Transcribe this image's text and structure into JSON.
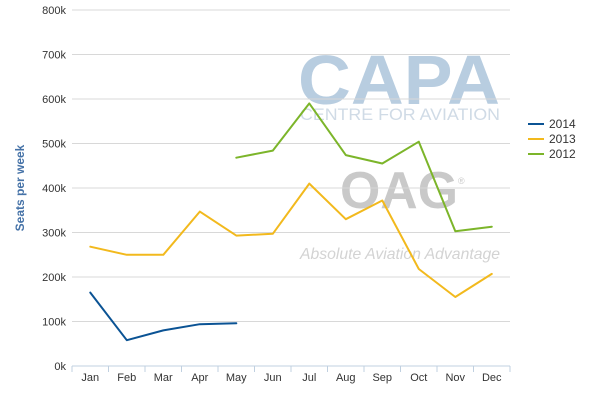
{
  "watermarks": {
    "capa_logo": "CAPA",
    "capa_subtitle": "CENTRE FOR AVIATION",
    "oag_logo": "OAG",
    "oag_registered": "®",
    "oag_tagline": "Absolute Aviation Advantage"
  },
  "chart_data": {
    "type": "line",
    "title": "",
    "xlabel": "",
    "ylabel": "Seats per week",
    "ylim": [
      0,
      800000
    ],
    "yticks": [
      0,
      100000,
      200000,
      300000,
      400000,
      500000,
      600000,
      700000,
      800000
    ],
    "ytick_labels": [
      "0k",
      "100k",
      "200k",
      "300k",
      "400k",
      "500k",
      "600k",
      "700k",
      "800k"
    ],
    "categories": [
      "Jan",
      "Feb",
      "Mar",
      "Apr",
      "May",
      "Jun",
      "Jul",
      "Aug",
      "Sep",
      "Oct",
      "Nov",
      "Dec"
    ],
    "grid": "horizontal",
    "legend_position": "right",
    "series": [
      {
        "name": "2014",
        "color": "#0b5394",
        "values": [
          165000,
          58000,
          80000,
          94000,
          96000,
          null,
          null,
          null,
          null,
          null,
          null,
          null
        ]
      },
      {
        "name": "2013",
        "color": "#f2b91d",
        "values": [
          268000,
          250000,
          250000,
          347000,
          293000,
          297000,
          410000,
          330000,
          372000,
          218000,
          155000,
          207000
        ]
      },
      {
        "name": "2012",
        "color": "#7cb52a",
        "values": [
          null,
          null,
          null,
          null,
          468000,
          484000,
          590000,
          474000,
          455000,
          504000,
          303000,
          313000
        ]
      }
    ]
  }
}
